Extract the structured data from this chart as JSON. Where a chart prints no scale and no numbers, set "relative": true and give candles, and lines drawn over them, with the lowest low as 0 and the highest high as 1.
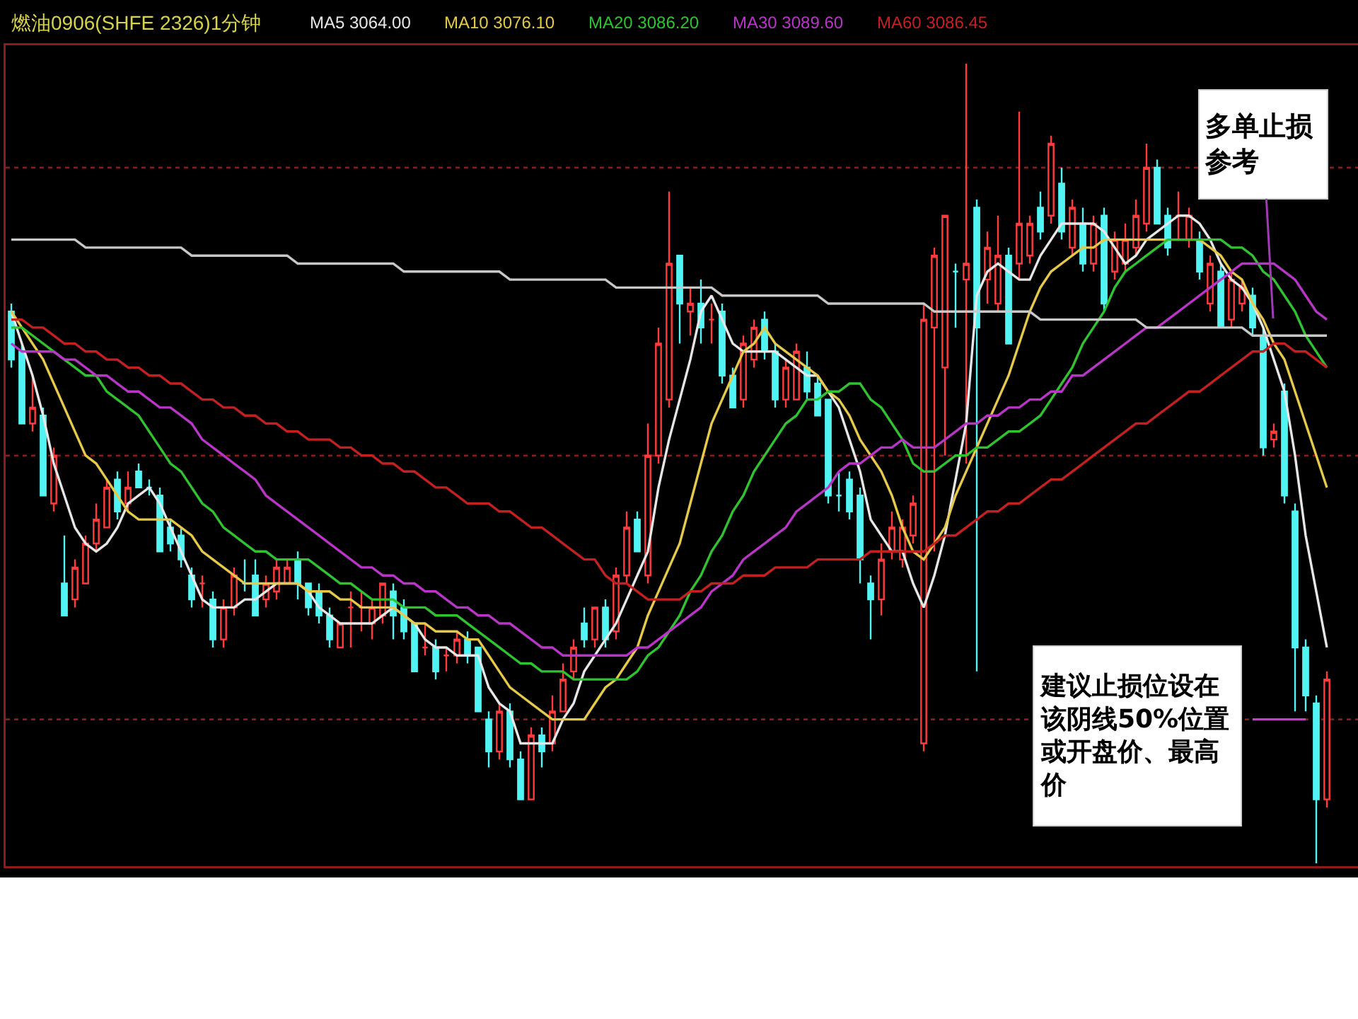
{
  "chart_data": {
    "type": "candlestick",
    "title": "燃油0906(SHFE 2326)1分钟",
    "relative": true,
    "legend": "top",
    "categories": [
      null,
      null,
      null,
      null,
      null,
      null,
      null,
      null,
      null,
      null,
      null,
      null,
      null,
      null,
      null,
      null,
      null,
      null,
      null,
      null,
      null,
      null,
      null,
      null,
      null,
      null,
      null,
      null,
      null,
      null,
      null,
      null,
      null,
      null,
      null,
      null,
      null,
      null,
      null,
      null,
      null,
      null,
      null,
      null,
      null,
      null,
      null,
      null,
      null,
      null,
      null,
      null,
      null,
      null,
      null,
      null,
      null,
      null,
      null,
      null,
      null,
      null,
      null,
      null,
      null,
      null,
      null,
      null,
      null,
      null,
      null,
      null,
      null,
      null,
      null,
      null,
      null,
      null,
      null,
      null,
      null,
      null,
      null,
      null,
      null,
      null,
      null,
      null,
      null,
      null,
      null,
      null,
      null,
      null,
      null,
      null,
      null,
      null,
      null,
      null,
      null,
      null,
      null,
      null,
      null,
      null,
      null,
      null,
      null,
      null,
      null,
      null,
      null,
      null,
      null,
      null,
      null,
      null,
      null,
      null,
      null,
      null,
      null,
      null,
      null
    ],
    "ohlc": [
      [
        0.69,
        0.7,
        0.62,
        0.63
      ],
      [
        0.64,
        0.65,
        0.55,
        0.55
      ],
      [
        0.55,
        0.61,
        0.54,
        0.57
      ],
      [
        0.56,
        0.57,
        0.46,
        0.46
      ],
      [
        0.45,
        0.52,
        0.44,
        0.51
      ],
      [
        0.35,
        0.41,
        0.31,
        0.31
      ],
      [
        0.33,
        0.38,
        0.32,
        0.37
      ],
      [
        0.35,
        0.41,
        0.35,
        0.4
      ],
      [
        0.4,
        0.45,
        0.39,
        0.43
      ],
      [
        0.42,
        0.48,
        0.42,
        0.47
      ],
      [
        0.48,
        0.49,
        0.43,
        0.44
      ],
      [
        0.45,
        0.49,
        0.44,
        0.47
      ],
      [
        0.49,
        0.5,
        0.47,
        0.47
      ],
      [
        0.47,
        0.48,
        0.46,
        0.47
      ],
      [
        0.46,
        0.47,
        0.39,
        0.39
      ],
      [
        0.42,
        0.43,
        0.39,
        0.4
      ],
      [
        0.41,
        0.42,
        0.37,
        0.38
      ],
      [
        0.36,
        0.37,
        0.32,
        0.33
      ],
      [
        0.35,
        0.36,
        0.32,
        0.35
      ],
      [
        0.33,
        0.34,
        0.27,
        0.28
      ],
      [
        0.28,
        0.33,
        0.27,
        0.32
      ],
      [
        0.32,
        0.37,
        0.31,
        0.36
      ],
      [
        0.35,
        0.38,
        0.34,
        0.35
      ],
      [
        0.36,
        0.38,
        0.31,
        0.31
      ],
      [
        0.33,
        0.36,
        0.32,
        0.35
      ],
      [
        0.34,
        0.38,
        0.33,
        0.37
      ],
      [
        0.35,
        0.38,
        0.35,
        0.37
      ],
      [
        0.38,
        0.39,
        0.33,
        0.35
      ],
      [
        0.35,
        0.35,
        0.31,
        0.32
      ],
      [
        0.34,
        0.35,
        0.3,
        0.31
      ],
      [
        0.31,
        0.32,
        0.27,
        0.28
      ],
      [
        0.27,
        0.3,
        0.27,
        0.3
      ],
      [
        0.32,
        0.34,
        0.27,
        0.32
      ],
      [
        0.32,
        0.34,
        0.29,
        0.32
      ],
      [
        0.3,
        0.33,
        0.28,
        0.32
      ],
      [
        0.31,
        0.35,
        0.3,
        0.35
      ],
      [
        0.34,
        0.35,
        0.28,
        0.31
      ],
      [
        0.32,
        0.33,
        0.28,
        0.29
      ],
      [
        0.3,
        0.3,
        0.24,
        0.24
      ],
      [
        0.27,
        0.3,
        0.26,
        0.27
      ],
      [
        0.27,
        0.28,
        0.23,
        0.24
      ],
      [
        0.26,
        0.27,
        0.24,
        0.26
      ],
      [
        0.26,
        0.29,
        0.25,
        0.28
      ],
      [
        0.28,
        0.29,
        0.25,
        0.26
      ],
      [
        0.27,
        0.27,
        0.19,
        0.19
      ],
      [
        0.18,
        0.19,
        0.12,
        0.14
      ],
      [
        0.14,
        0.2,
        0.13,
        0.19
      ],
      [
        0.19,
        0.2,
        0.12,
        0.13
      ],
      [
        0.13,
        0.14,
        0.08,
        0.08
      ],
      [
        0.08,
        0.17,
        0.08,
        0.16
      ],
      [
        0.16,
        0.17,
        0.12,
        0.14
      ],
      [
        0.15,
        0.21,
        0.14,
        0.19
      ],
      [
        0.19,
        0.25,
        0.19,
        0.23
      ],
      [
        0.24,
        0.28,
        0.23,
        0.27
      ],
      [
        0.3,
        0.32,
        0.27,
        0.28
      ],
      [
        0.28,
        0.32,
        0.27,
        0.32
      ],
      [
        0.32,
        0.33,
        0.27,
        0.28
      ],
      [
        0.29,
        0.37,
        0.28,
        0.36
      ],
      [
        0.36,
        0.44,
        0.35,
        0.42
      ],
      [
        0.43,
        0.44,
        0.39,
        0.39
      ],
      [
        0.36,
        0.55,
        0.35,
        0.51
      ],
      [
        0.51,
        0.67,
        0.5,
        0.65
      ],
      [
        0.58,
        0.84,
        0.57,
        0.75
      ],
      [
        0.76,
        0.76,
        0.65,
        0.7
      ],
      [
        0.69,
        0.72,
        0.66,
        0.7
      ],
      [
        0.7,
        0.73,
        0.65,
        0.67
      ],
      [
        0.68,
        0.7,
        0.65,
        0.68
      ],
      [
        0.69,
        0.7,
        0.6,
        0.61
      ],
      [
        0.61,
        0.62,
        0.57,
        0.57
      ],
      [
        0.58,
        0.66,
        0.57,
        0.65
      ],
      [
        0.63,
        0.68,
        0.62,
        0.67
      ],
      [
        0.68,
        0.69,
        0.63,
        0.64
      ],
      [
        0.64,
        0.65,
        0.57,
        0.58
      ],
      [
        0.58,
        0.63,
        0.57,
        0.62
      ],
      [
        0.58,
        0.65,
        0.58,
        0.64
      ],
      [
        0.62,
        0.64,
        0.58,
        0.59
      ],
      [
        0.6,
        0.61,
        0.56,
        0.56
      ],
      [
        0.58,
        0.58,
        0.45,
        0.46
      ],
      [
        0.46,
        0.49,
        0.44,
        0.46
      ],
      [
        0.48,
        0.49,
        0.43,
        0.44
      ],
      [
        0.46,
        0.47,
        0.35,
        0.38
      ],
      [
        0.35,
        0.36,
        0.28,
        0.33
      ],
      [
        0.33,
        0.4,
        0.31,
        0.38
      ],
      [
        0.39,
        0.44,
        0.38,
        0.42
      ],
      [
        0.38,
        0.43,
        0.37,
        0.42
      ],
      [
        0.41,
        0.46,
        0.4,
        0.45
      ],
      [
        0.15,
        0.7,
        0.14,
        0.68
      ],
      [
        0.67,
        0.77,
        0.39,
        0.76
      ],
      [
        0.62,
        0.81,
        0.51,
        0.81
      ],
      [
        0.74,
        0.75,
        0.67,
        0.74
      ],
      [
        0.73,
        1,
        0.5,
        0.75
      ],
      [
        0.82,
        0.83,
        0.24,
        0.67
      ],
      [
        0.73,
        0.79,
        0.7,
        0.77
      ],
      [
        0.7,
        0.81,
        0.69,
        0.76
      ],
      [
        0.76,
        0.77,
        0.65,
        0.65
      ],
      [
        0.75,
        0.94,
        0.73,
        0.8
      ],
      [
        0.76,
        0.81,
        0.75,
        0.8
      ],
      [
        0.82,
        0.84,
        0.78,
        0.79
      ],
      [
        0.81,
        0.91,
        0.8,
        0.9
      ],
      [
        0.85,
        0.87,
        0.78,
        0.79
      ],
      [
        0.77,
        0.83,
        0.76,
        0.82
      ],
      [
        0.8,
        0.82,
        0.74,
        0.75
      ],
      [
        0.75,
        0.81,
        0.74,
        0.8
      ],
      [
        0.81,
        0.82,
        0.69,
        0.7
      ],
      [
        0.74,
        0.79,
        0.73,
        0.78
      ],
      [
        0.75,
        0.8,
        0.74,
        0.78
      ],
      [
        0.77,
        0.83,
        0.76,
        0.81
      ],
      [
        0.8,
        0.9,
        0.79,
        0.87
      ],
      [
        0.87,
        0.88,
        0.8,
        0.8
      ],
      [
        0.81,
        0.82,
        0.76,
        0.77
      ],
      [
        0.81,
        0.84,
        0.78,
        0.81
      ],
      [
        0.78,
        0.82,
        0.77,
        0.81
      ],
      [
        0.78,
        0.79,
        0.73,
        0.74
      ],
      [
        0.7,
        0.76,
        0.69,
        0.75
      ],
      [
        0.74,
        0.75,
        0.67,
        0.67
      ],
      [
        0.68,
        0.74,
        0.67,
        0.73
      ],
      [
        0.7,
        0.73,
        0.69,
        0.72
      ],
      [
        0.71,
        0.72,
        0.66,
        0.67
      ],
      [
        0.66,
        0.67,
        0.51,
        0.52
      ],
      [
        0.53,
        0.55,
        0.52,
        0.54
      ],
      [
        0.59,
        0.6,
        0.45,
        0.46
      ],
      [
        0.44,
        0.45,
        0.19,
        0.27
      ],
      [
        0.27,
        0.28,
        0.19,
        0.21
      ],
      [
        0.2,
        0.21,
        0,
        0.08
      ],
      [
        0.08,
        0.24,
        0.07,
        0.23
      ]
    ],
    "series": [
      {
        "type": "line",
        "name": "MA5 3064.00",
        "color": "#e6e6e6",
        "values": [
          0.69,
          0.65,
          0.61,
          0.56,
          0.5,
          0.46,
          0.42,
          0.4,
          0.39,
          0.4,
          0.42,
          0.45,
          0.46,
          0.47,
          0.45,
          0.42,
          0.39,
          0.36,
          0.33,
          0.32,
          0.32,
          0.32,
          0.33,
          0.33,
          0.34,
          0.35,
          0.35,
          0.35,
          0.34,
          0.32,
          0.31,
          0.3,
          0.3,
          0.3,
          0.3,
          0.31,
          0.32,
          0.31,
          0.3,
          0.28,
          0.27,
          0.27,
          0.26,
          0.26,
          0.26,
          0.22,
          0.2,
          0.19,
          0.15,
          0.15,
          0.15,
          0.15,
          0.18,
          0.2,
          0.24,
          0.26,
          0.28,
          0.3,
          0.33,
          0.36,
          0.39,
          0.47,
          0.53,
          0.58,
          0.63,
          0.69,
          0.71,
          0.68,
          0.65,
          0.64,
          0.64,
          0.64,
          0.64,
          0.63,
          0.62,
          0.61,
          0.61,
          0.59,
          0.57,
          0.53,
          0.49,
          0.43,
          0.41,
          0.39,
          0.39,
          0.35,
          0.32,
          0.36,
          0.41,
          0.48,
          0.55,
          0.71,
          0.74,
          0.75,
          0.74,
          0.73,
          0.73,
          0.76,
          0.78,
          0.8,
          0.8,
          0.8,
          0.8,
          0.79,
          0.77,
          0.75,
          0.76,
          0.78,
          0.79,
          0.8,
          0.81,
          0.81,
          0.8,
          0.78,
          0.75,
          0.73,
          0.72,
          0.7,
          0.67,
          0.63,
          0.59,
          0.51,
          0.41,
          0.34,
          0.27
        ]
      },
      {
        "type": "line",
        "name": "MA10 3076.10",
        "color": "#e6c84a",
        "values": [
          0.69,
          0.67,
          0.65,
          0.63,
          0.6,
          0.57,
          0.54,
          0.51,
          0.5,
          0.48,
          0.46,
          0.44,
          0.43,
          0.43,
          0.43,
          0.43,
          0.42,
          0.41,
          0.39,
          0.38,
          0.37,
          0.36,
          0.35,
          0.35,
          0.35,
          0.35,
          0.35,
          0.35,
          0.34,
          0.34,
          0.34,
          0.33,
          0.33,
          0.32,
          0.32,
          0.32,
          0.32,
          0.31,
          0.3,
          0.3,
          0.29,
          0.29,
          0.29,
          0.28,
          0.28,
          0.26,
          0.24,
          0.22,
          0.21,
          0.2,
          0.19,
          0.18,
          0.18,
          0.18,
          0.18,
          0.2,
          0.22,
          0.23,
          0.25,
          0.27,
          0.31,
          0.34,
          0.37,
          0.4,
          0.45,
          0.5,
          0.55,
          0.58,
          0.61,
          0.64,
          0.65,
          0.67,
          0.65,
          0.64,
          0.63,
          0.62,
          0.61,
          0.59,
          0.58,
          0.56,
          0.53,
          0.51,
          0.49,
          0.46,
          0.42,
          0.39,
          0.38,
          0.4,
          0.42,
          0.46,
          0.49,
          0.52,
          0.55,
          0.58,
          0.61,
          0.65,
          0.69,
          0.72,
          0.74,
          0.75,
          0.76,
          0.77,
          0.77,
          0.78,
          0.78,
          0.78,
          0.78,
          0.78,
          0.78,
          0.78,
          0.78,
          0.78,
          0.78,
          0.77,
          0.76,
          0.74,
          0.73,
          0.7,
          0.68,
          0.65,
          0.63,
          0.59,
          0.55,
          0.51,
          0.47
        ]
      },
      {
        "type": "line",
        "name": "MA20 3086.20",
        "color": "#2fc42f",
        "values": [
          0.67,
          0.67,
          0.66,
          0.65,
          0.64,
          0.63,
          0.62,
          0.61,
          0.61,
          0.59,
          0.58,
          0.57,
          0.56,
          0.54,
          0.52,
          0.5,
          0.49,
          0.47,
          0.45,
          0.44,
          0.42,
          0.41,
          0.4,
          0.39,
          0.39,
          0.38,
          0.38,
          0.38,
          0.38,
          0.37,
          0.36,
          0.35,
          0.35,
          0.34,
          0.33,
          0.33,
          0.33,
          0.32,
          0.32,
          0.32,
          0.31,
          0.31,
          0.31,
          0.3,
          0.29,
          0.28,
          0.27,
          0.26,
          0.25,
          0.25,
          0.24,
          0.24,
          0.24,
          0.23,
          0.23,
          0.23,
          0.23,
          0.23,
          0.23,
          0.24,
          0.26,
          0.27,
          0.29,
          0.31,
          0.34,
          0.36,
          0.39,
          0.41,
          0.44,
          0.46,
          0.49,
          0.51,
          0.53,
          0.55,
          0.56,
          0.58,
          0.58,
          0.59,
          0.59,
          0.6,
          0.6,
          0.58,
          0.57,
          0.55,
          0.53,
          0.5,
          0.49,
          0.49,
          0.5,
          0.51,
          0.51,
          0.52,
          0.52,
          0.53,
          0.54,
          0.54,
          0.55,
          0.56,
          0.58,
          0.6,
          0.62,
          0.65,
          0.67,
          0.69,
          0.72,
          0.74,
          0.75,
          0.76,
          0.77,
          0.78,
          0.78,
          0.78,
          0.78,
          0.78,
          0.78,
          0.77,
          0.77,
          0.76,
          0.74,
          0.73,
          0.71,
          0.69,
          0.66,
          0.64,
          0.62
        ]
      },
      {
        "type": "line",
        "name": "MA30 3089.60",
        "color": "#b935c8",
        "values": [
          0.65,
          0.64,
          0.64,
          0.64,
          0.64,
          0.63,
          0.63,
          0.62,
          0.61,
          0.61,
          0.6,
          0.59,
          0.59,
          0.58,
          0.57,
          0.57,
          0.56,
          0.55,
          0.53,
          0.52,
          0.51,
          0.5,
          0.49,
          0.48,
          0.46,
          0.45,
          0.44,
          0.43,
          0.42,
          0.41,
          0.4,
          0.39,
          0.38,
          0.37,
          0.37,
          0.36,
          0.36,
          0.35,
          0.35,
          0.34,
          0.34,
          0.33,
          0.32,
          0.32,
          0.31,
          0.31,
          0.3,
          0.3,
          0.29,
          0.28,
          0.27,
          0.27,
          0.26,
          0.26,
          0.26,
          0.26,
          0.26,
          0.26,
          0.26,
          0.27,
          0.27,
          0.28,
          0.29,
          0.3,
          0.31,
          0.32,
          0.34,
          0.35,
          0.36,
          0.38,
          0.39,
          0.4,
          0.41,
          0.42,
          0.44,
          0.45,
          0.46,
          0.47,
          0.49,
          0.5,
          0.5,
          0.51,
          0.52,
          0.52,
          0.53,
          0.52,
          0.52,
          0.52,
          0.53,
          0.54,
          0.55,
          0.55,
          0.56,
          0.56,
          0.57,
          0.57,
          0.58,
          0.58,
          0.59,
          0.59,
          0.61,
          0.61,
          0.62,
          0.63,
          0.64,
          0.65,
          0.66,
          0.67,
          0.67,
          0.68,
          0.69,
          0.7,
          0.71,
          0.72,
          0.73,
          0.74,
          0.75,
          0.75,
          0.75,
          0.75,
          0.74,
          0.73,
          0.71,
          0.69,
          0.68
        ]
      },
      {
        "type": "line",
        "name": "MA60 3086.45",
        "color": "#c42020",
        "values": [
          0.68,
          0.68,
          0.67,
          0.67,
          0.66,
          0.65,
          0.65,
          0.64,
          0.64,
          0.63,
          0.63,
          0.62,
          0.62,
          0.61,
          0.61,
          0.6,
          0.6,
          0.59,
          0.58,
          0.58,
          0.57,
          0.57,
          0.56,
          0.56,
          0.55,
          0.55,
          0.54,
          0.54,
          0.53,
          0.53,
          0.53,
          0.52,
          0.52,
          0.51,
          0.51,
          0.5,
          0.5,
          0.49,
          0.49,
          0.48,
          0.47,
          0.47,
          0.46,
          0.45,
          0.45,
          0.45,
          0.44,
          0.44,
          0.43,
          0.42,
          0.42,
          0.41,
          0.4,
          0.39,
          0.38,
          0.38,
          0.36,
          0.35,
          0.35,
          0.34,
          0.33,
          0.33,
          0.33,
          0.33,
          0.34,
          0.34,
          0.35,
          0.35,
          0.35,
          0.36,
          0.36,
          0.36,
          0.37,
          0.37,
          0.37,
          0.37,
          0.38,
          0.38,
          0.38,
          0.38,
          0.38,
          0.39,
          0.39,
          0.39,
          0.39,
          0.39,
          0.39,
          0.4,
          0.41,
          0.41,
          0.42,
          0.43,
          0.44,
          0.44,
          0.45,
          0.45,
          0.46,
          0.47,
          0.48,
          0.48,
          0.49,
          0.5,
          0.51,
          0.52,
          0.53,
          0.54,
          0.55,
          0.55,
          0.56,
          0.57,
          0.58,
          0.59,
          0.59,
          0.6,
          0.61,
          0.62,
          0.63,
          0.64,
          0.64,
          0.65,
          0.65,
          0.64,
          0.64,
          0.63,
          0.62
        ]
      },
      {
        "type": "line",
        "color": "#c8c8c8",
        "values": [
          0.78,
          0.78,
          0.78,
          0.78,
          0.78,
          0.78,
          0.78,
          0.77,
          0.77,
          0.77,
          0.77,
          0.77,
          0.77,
          0.77,
          0.77,
          0.77,
          0.77,
          0.76,
          0.76,
          0.76,
          0.76,
          0.76,
          0.76,
          0.76,
          0.76,
          0.76,
          0.76,
          0.75,
          0.75,
          0.75,
          0.75,
          0.75,
          0.75,
          0.75,
          0.75,
          0.75,
          0.75,
          0.74,
          0.74,
          0.74,
          0.74,
          0.74,
          0.74,
          0.74,
          0.74,
          0.74,
          0.74,
          0.73,
          0.73,
          0.73,
          0.73,
          0.73,
          0.73,
          0.73,
          0.73,
          0.73,
          0.73,
          0.72,
          0.72,
          0.72,
          0.72,
          0.72,
          0.72,
          0.72,
          0.72,
          0.72,
          0.72,
          0.71,
          0.71,
          0.71,
          0.71,
          0.71,
          0.71,
          0.71,
          0.71,
          0.71,
          0.71,
          0.7,
          0.7,
          0.7,
          0.7,
          0.7,
          0.7,
          0.7,
          0.7,
          0.7,
          0.7,
          0.69,
          0.69,
          0.69,
          0.69,
          0.69,
          0.69,
          0.69,
          0.69,
          0.69,
          0.69,
          0.68,
          0.68,
          0.68,
          0.68,
          0.68,
          0.68,
          0.68,
          0.68,
          0.68,
          0.68,
          0.67,
          0.67,
          0.67,
          0.67,
          0.67,
          0.67,
          0.67,
          0.67,
          0.67,
          0.67,
          0.66,
          0.66,
          0.66,
          0.66,
          0.66,
          0.66,
          0.66,
          0.66
        ]
      },
      {
        "type": "line",
        "color": "#c43cc8",
        "values": [
          null,
          null,
          null,
          null,
          null,
          null,
          null,
          null,
          null,
          null,
          null,
          null,
          null,
          null,
          null,
          null,
          null,
          null,
          null,
          null,
          null,
          null,
          null,
          null,
          null,
          null,
          null,
          null,
          null,
          null,
          null,
          null,
          null,
          null,
          null,
          null,
          null,
          null,
          null,
          null,
          null,
          null,
          null,
          null,
          null,
          null,
          null,
          null,
          null,
          null,
          null,
          null,
          null,
          null,
          null,
          null,
          null,
          null,
          null,
          null,
          null,
          null,
          null,
          null,
          null,
          null,
          null,
          null,
          null,
          null,
          null,
          null,
          null,
          null,
          null,
          null,
          null,
          null,
          null,
          null,
          null,
          null,
          null,
          null,
          null,
          null,
          null,
          null,
          null,
          null,
          null,
          null,
          null,
          null,
          null,
          null,
          null,
          null,
          null,
          null,
          null,
          null,
          null,
          null,
          null,
          null,
          null,
          null,
          null,
          null,
          null,
          null,
          null,
          null,
          null,
          null,
          null,
          0.18,
          0.18,
          0.18,
          0.18,
          0.18,
          0.18,
          null,
          null
        ]
      }
    ],
    "ref_lines": [
      {
        "axis": "y",
        "value": 0.87,
        "color": "#8a1c1c",
        "line_style": "dotted"
      },
      {
        "axis": "y",
        "value": 0.51,
        "color": "#8a1c1c",
        "line_style": "dotted"
      },
      {
        "axis": "y",
        "value": 0.18,
        "color": "#8a1c1c",
        "line_style": "dotted"
      }
    ],
    "annotations": [
      "多单止损参考",
      "建议止损位设在该阴线50%位置或开盘价、最高价"
    ]
  }
}
